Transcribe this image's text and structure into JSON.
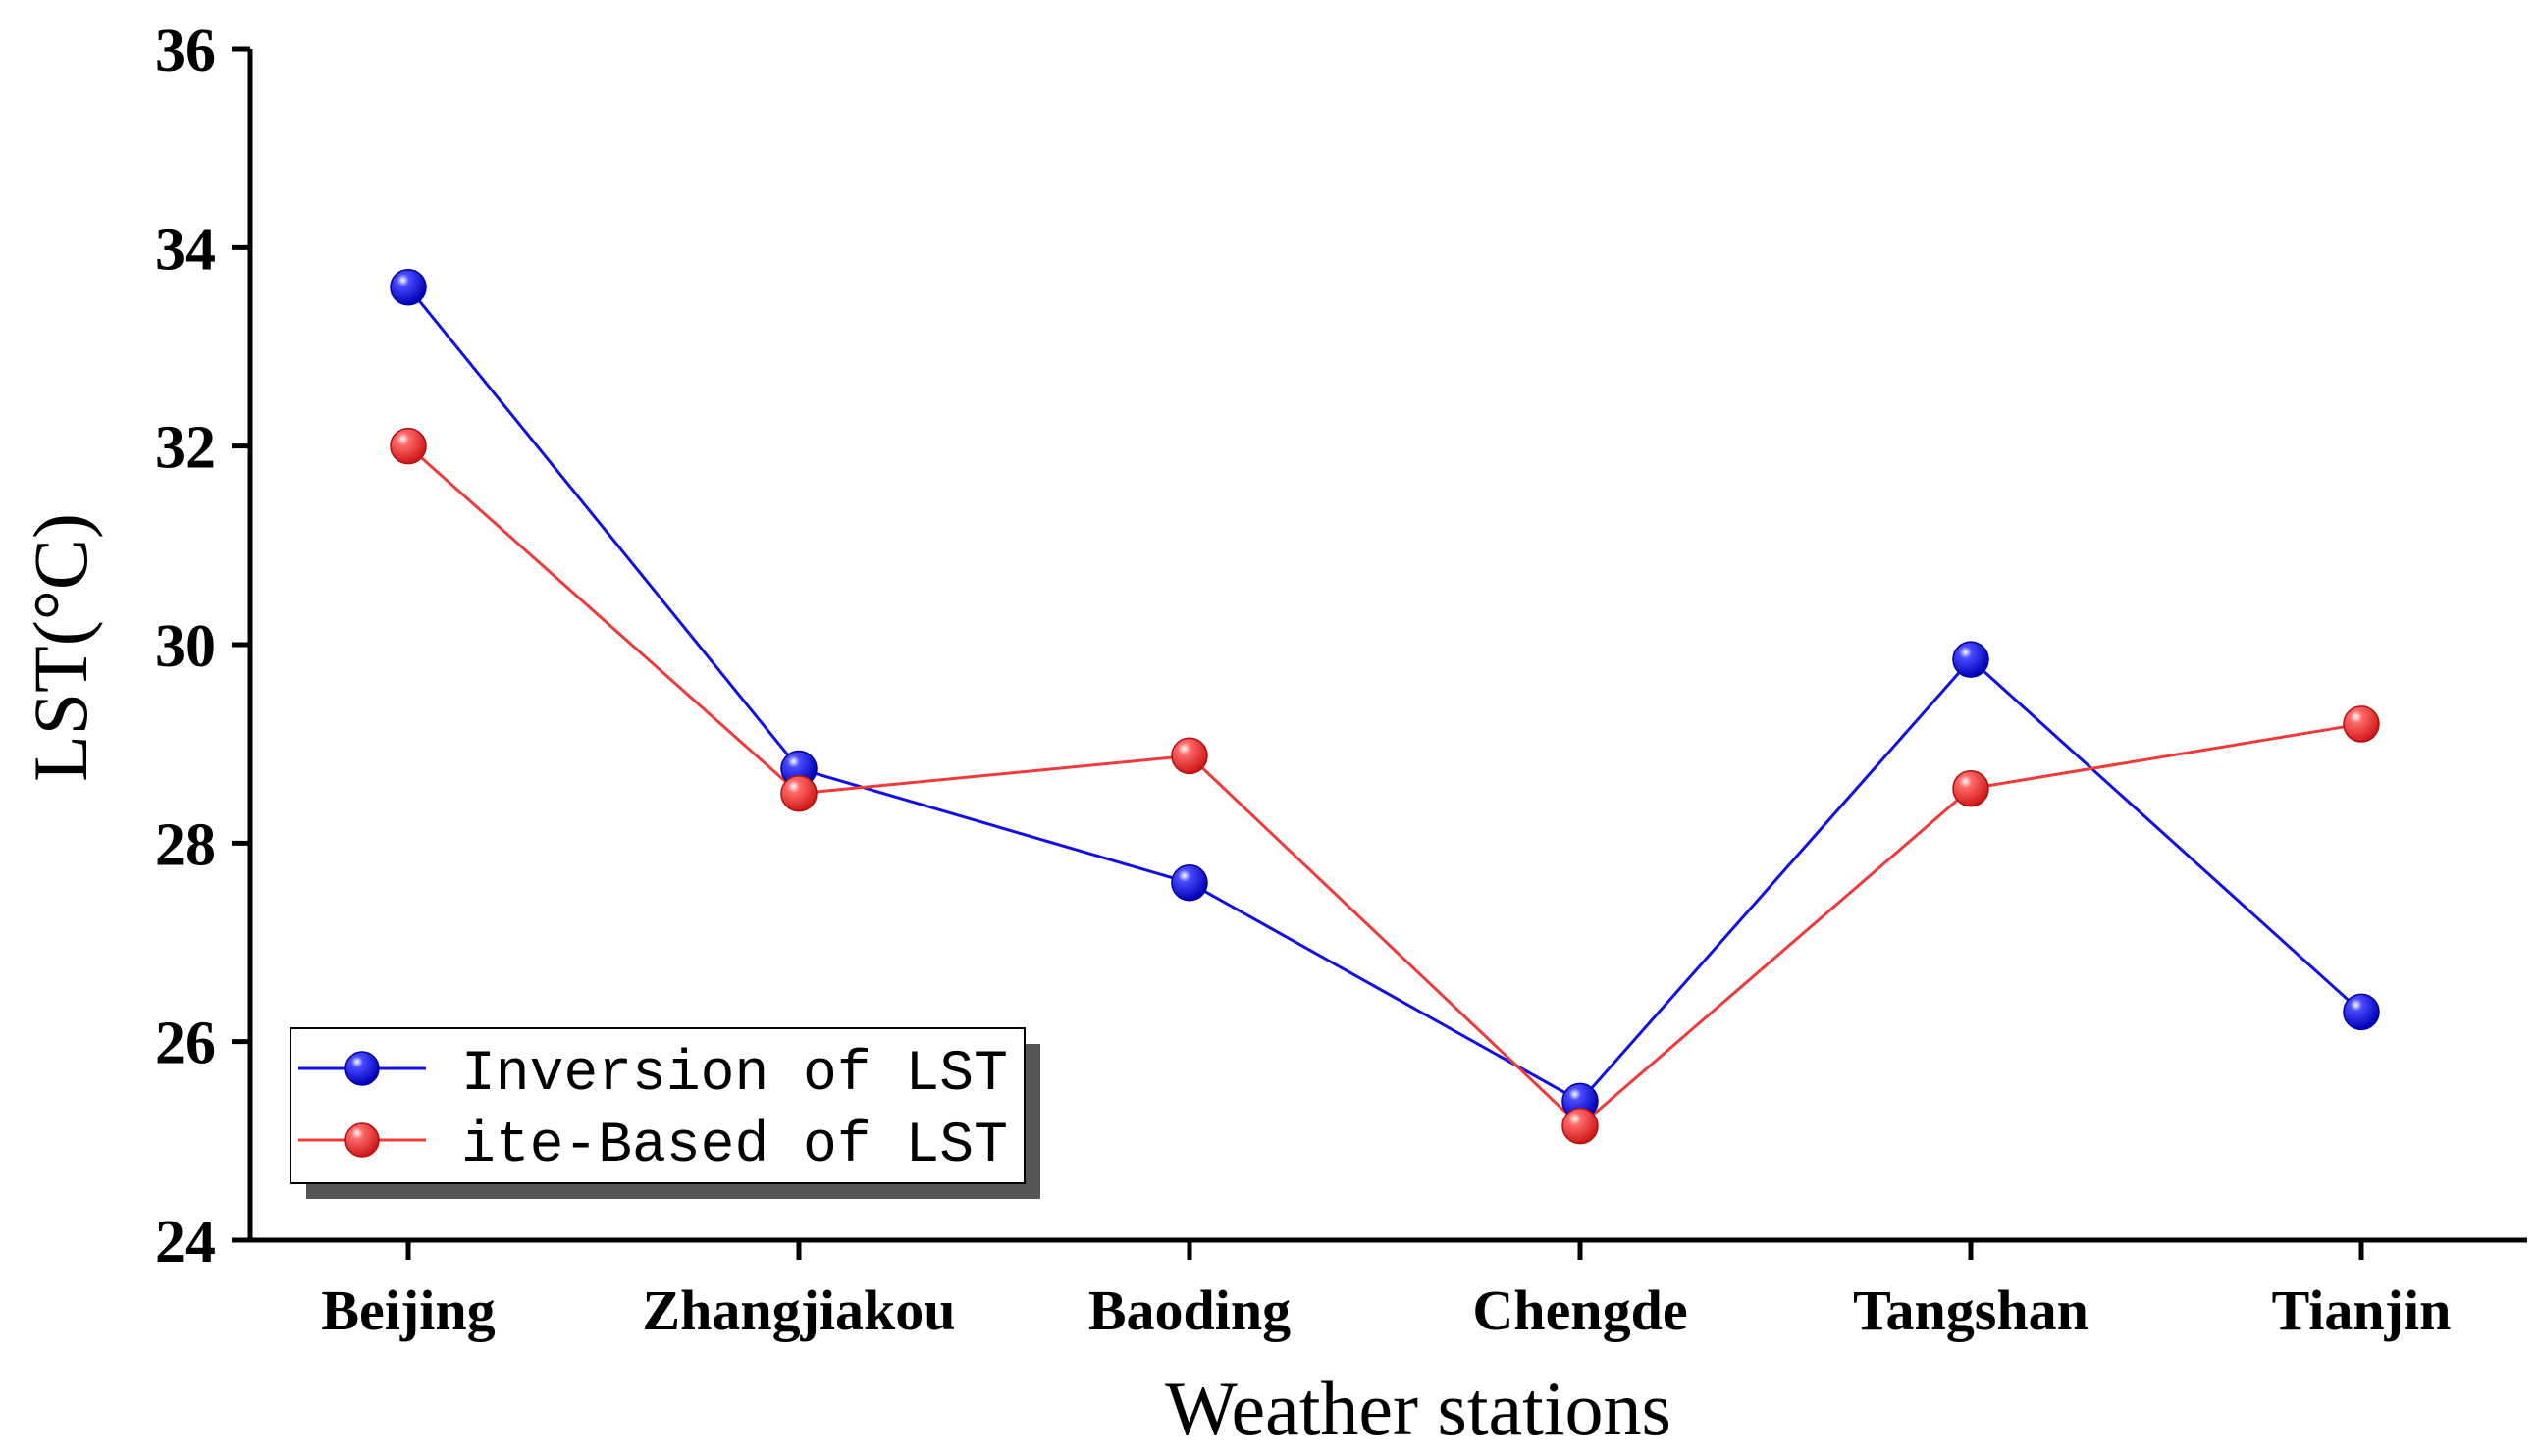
{
  "chart_data": {
    "type": "line",
    "title": "",
    "xlabel": "Weather stations",
    "ylabel": "LST(°C)",
    "categories": [
      "Beijing",
      "Zhangjiakou",
      "Baoding",
      "Chengde",
      "Tangshan",
      "Tianjin"
    ],
    "ylim": [
      24,
      36
    ],
    "yticks": [
      24,
      26,
      28,
      30,
      32,
      34,
      36
    ],
    "grid": false,
    "legend_position": "bottom-left",
    "series": [
      {
        "name": "Inversion of LST",
        "color": "#1010e6",
        "values": [
          33.6,
          28.75,
          27.6,
          25.4,
          29.85,
          26.3
        ]
      },
      {
        "name": "ite-Based of LST",
        "color": "#f03a3a",
        "values": [
          32.0,
          28.5,
          28.88,
          25.15,
          28.55,
          29.2
        ]
      }
    ]
  }
}
